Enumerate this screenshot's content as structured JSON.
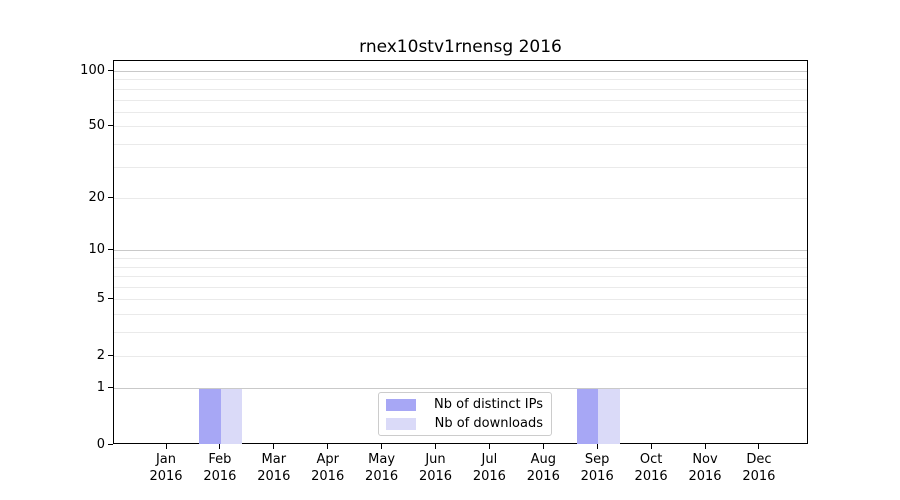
{
  "chart_data": {
    "type": "bar",
    "title": "rnex10stv1rnensg 2016",
    "categories": [
      "Jan",
      "Feb",
      "Mar",
      "Apr",
      "May",
      "Jun",
      "Jul",
      "Aug",
      "Sep",
      "Oct",
      "Nov",
      "Dec"
    ],
    "year_label": "2016",
    "series": [
      {
        "name": "Nb of distinct IPs",
        "color": "#a7a7f5",
        "values": [
          0,
          1,
          0,
          0,
          0,
          0,
          0,
          0,
          1,
          0,
          0,
          0
        ]
      },
      {
        "name": "Nb of downloads",
        "color": "#dadaf8",
        "values": [
          0,
          1,
          0,
          0,
          0,
          0,
          0,
          0,
          1,
          0,
          0,
          0
        ]
      }
    ],
    "xlabel": "",
    "ylabel": "",
    "y_scale": "log1p",
    "ylim": [
      0,
      114
    ],
    "y_tick_values": [
      0,
      1,
      2,
      5,
      10,
      20,
      50,
      100
    ],
    "y_major_grid_values": [
      1,
      10,
      100
    ],
    "y_minor_grid_values": [
      2,
      3,
      4,
      5,
      6,
      7,
      8,
      9,
      20,
      30,
      40,
      50,
      60,
      70,
      80,
      90
    ],
    "grid": true,
    "legend_position": "lower center",
    "colors": {
      "major_grid": "#c9c9c9",
      "minor_grid": "#eaeaea",
      "spine": "#000000",
      "background": "#ffffff"
    }
  }
}
